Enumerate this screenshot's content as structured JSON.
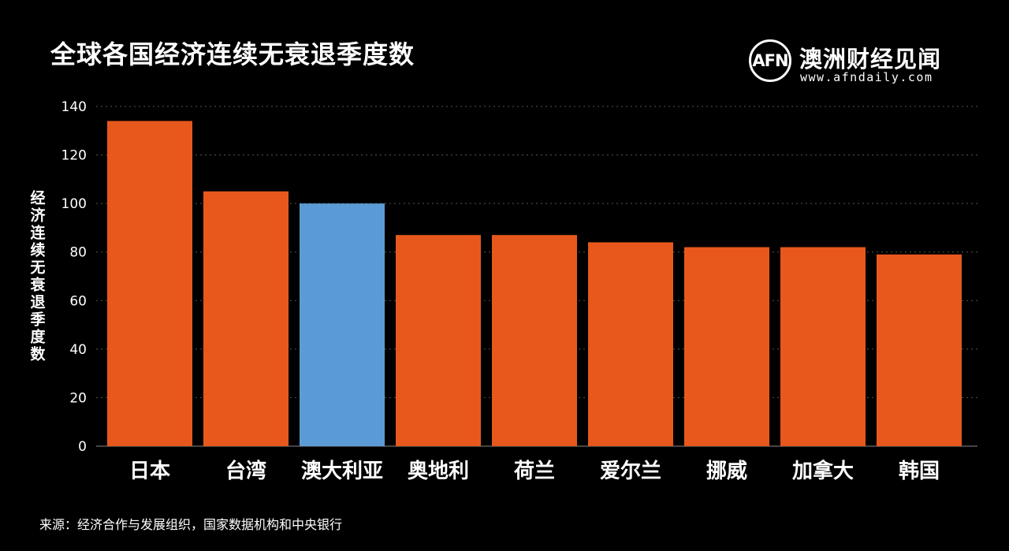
{
  "header": {
    "title": "全球各国经济连续无衰退季度数"
  },
  "logo": {
    "mark": "AFN",
    "name": "澳洲财经见闻",
    "url": "www.afndaily.com"
  },
  "footer": {
    "source": "来源：经济合作与发展组织，国家数据机构和中央银行"
  },
  "colors": {
    "background": "#000000",
    "bar_default": "#E8581C",
    "bar_highlight": "#5B9BD5",
    "grid": "#555555",
    "text": "#FFFFFF"
  },
  "chart_data": {
    "type": "bar",
    "title": "全球各国经济连续无衰退季度数",
    "ylabel": "经济连续无衰退季度数",
    "xlabel": "",
    "categories": [
      "日本",
      "台湾",
      "澳大利亚",
      "奥地利",
      "荷兰",
      "爱尔兰",
      "挪威",
      "加拿大",
      "韩国"
    ],
    "values": [
      134,
      105,
      100,
      87,
      87,
      84,
      82,
      82,
      79
    ],
    "highlight": [
      "澳大利亚"
    ],
    "ylim": [
      0,
      140
    ],
    "yticks": [
      0,
      20,
      40,
      60,
      80,
      100,
      120,
      140
    ],
    "grid": true,
    "legend": "none"
  }
}
